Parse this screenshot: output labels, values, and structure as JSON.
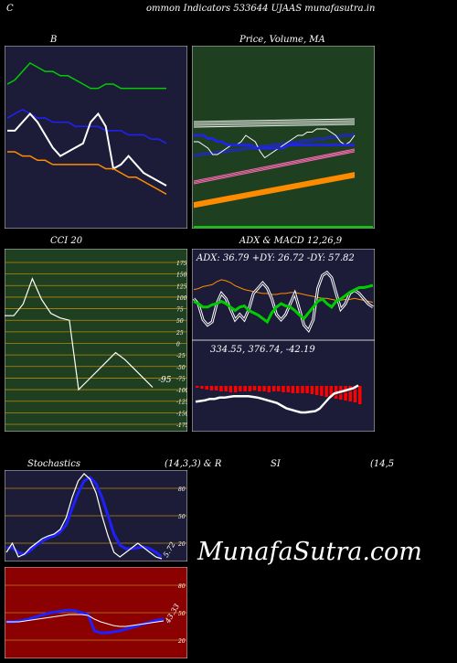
{
  "header": {
    "left": "C",
    "title": "ommon  Indicators 533644  UJAAS munafasutra.in"
  },
  "watermark": "MunafaSutra.com",
  "colors": {
    "navy": "#1c1c38",
    "darkgreen": "#1f4020",
    "darkred": "#8b0000",
    "grid": "#b8860b",
    "white": "#ffffff",
    "blue": "#2020ff",
    "green": "#00cc00",
    "orange": "#ff8c00",
    "red": "#ff0000"
  },
  "chart_data": [
    {
      "id": "bollinger",
      "type": "line",
      "title": "B",
      "series": [
        {
          "name": "",
          "color": "green",
          "values": [
            57,
            58,
            60,
            62,
            61,
            60,
            60,
            59,
            59,
            58,
            57,
            56,
            56,
            57,
            57,
            56,
            56,
            56,
            56,
            56,
            56,
            56
          ]
        },
        {
          "name": "",
          "color": "blue",
          "values": [
            49,
            50,
            51,
            50,
            49,
            49,
            48,
            48,
            48,
            47,
            47,
            47,
            47,
            46,
            46,
            46,
            45,
            45,
            45,
            44,
            44,
            43
          ]
        },
        {
          "name": "",
          "color": "white",
          "values": [
            46,
            46,
            48,
            50,
            48,
            45,
            42,
            40,
            41,
            42,
            43,
            48,
            50,
            47,
            37,
            38,
            40,
            38,
            36,
            35,
            34,
            33
          ]
        },
        {
          "name": "",
          "color": "orange",
          "values": [
            41,
            41,
            40,
            40,
            39,
            39,
            38,
            38,
            38,
            38,
            38,
            38,
            38,
            37,
            37,
            36,
            35,
            35,
            34,
            33,
            32,
            31
          ]
        }
      ]
    },
    {
      "id": "price-ma",
      "type": "line",
      "title": "Price,  Volume,  MA",
      "series": [
        {
          "name": "",
          "color": "white",
          "values": [
            60,
            60,
            59,
            58,
            56,
            56,
            57,
            58,
            59,
            59,
            60,
            62,
            61,
            60,
            57,
            55,
            56,
            57,
            58,
            59,
            60,
            61,
            62,
            62,
            63,
            63,
            64,
            64,
            64,
            63,
            62,
            60,
            59,
            60,
            62
          ]
        },
        {
          "name": "",
          "color": "blue",
          "values": [
            62,
            62,
            62,
            61,
            61,
            60,
            60,
            59,
            59,
            59,
            59,
            59,
            59,
            58,
            58,
            58,
            58,
            58,
            58,
            58,
            59,
            59,
            59,
            59,
            59,
            59,
            59,
            59,
            59,
            59,
            59,
            59,
            59,
            59,
            59
          ]
        }
      ]
    },
    {
      "id": "cci",
      "type": "line",
      "title": "CCI 20",
      "last_label": "-95",
      "ticks": [
        175,
        150,
        125,
        100,
        75,
        50,
        25,
        0,
        -25,
        -50,
        -75,
        -100,
        -125,
        -150,
        -175
      ],
      "ylim": [
        -175,
        175
      ],
      "values": [
        60,
        60,
        85,
        140,
        95,
        65,
        55,
        50,
        -100,
        -80,
        -60,
        -40,
        -20,
        -35,
        -55,
        -75,
        -95
      ]
    },
    {
      "id": "adx",
      "type": "line",
      "title": "ADX  & MACD 12,26,9",
      "text": "ADX: 36.79  +DY: 26.72  -DY: 57.82",
      "adx": [
        62,
        63,
        65,
        66,
        67,
        70,
        72,
        71,
        69,
        66,
        64,
        62,
        61,
        60,
        59,
        58,
        58,
        57,
        57,
        58,
        58,
        59,
        59,
        58,
        57,
        56,
        55,
        54,
        53,
        53,
        52,
        51,
        51,
        52,
        52,
        53,
        52,
        51,
        50,
        49
      ],
      "plus_di": [
        60,
        58,
        55,
        55,
        57,
        58,
        60,
        58,
        55,
        52,
        55,
        56,
        52,
        50,
        48,
        45,
        42,
        50,
        55,
        58,
        56,
        55,
        52,
        48,
        45,
        50,
        55,
        60,
        62,
        58,
        55,
        60,
        62,
        65,
        68,
        70,
        72,
        72,
        73,
        74
      ],
      "minus_di": [
        50,
        45,
        30,
        25,
        28,
        45,
        55,
        50,
        40,
        30,
        35,
        30,
        40,
        55,
        60,
        65,
        60,
        50,
        35,
        30,
        35,
        45,
        55,
        40,
        25,
        20,
        30,
        60,
        72,
        75,
        70,
        55,
        40,
        45,
        55,
        58,
        55,
        50,
        45,
        42
      ]
    },
    {
      "id": "macd",
      "type": "bar",
      "text": "334.55,  376.74,  -42.19",
      "bars": [
        2,
        3,
        4,
        5,
        5,
        6,
        6,
        7,
        7,
        6,
        6,
        6,
        5,
        6,
        6,
        7,
        6,
        6,
        7,
        7,
        8,
        8,
        8,
        8,
        9,
        10,
        11,
        12,
        13,
        14,
        15,
        16,
        17,
        18,
        20
      ],
      "macd": [
        20,
        21,
        22,
        24,
        24,
        26,
        26,
        27,
        28,
        28,
        28,
        28,
        27,
        26,
        24,
        22,
        20,
        18,
        14,
        10,
        8,
        6,
        4,
        4,
        5,
        6,
        10,
        18,
        26,
        32,
        34,
        36,
        38,
        40,
        44
      ]
    },
    {
      "id": "stochastics",
      "type": "line",
      "title": "Stochastics",
      "params": "(14,3,3)  & R",
      "ticks": [
        80,
        50,
        20
      ],
      "ylim": [
        0,
        100
      ],
      "last_label": "5.72",
      "k": [
        10,
        20,
        5,
        8,
        15,
        20,
        25,
        28,
        30,
        35,
        48,
        70,
        88,
        96,
        90,
        75,
        50,
        28,
        10,
        5,
        10,
        15,
        20,
        15,
        10,
        5,
        3
      ],
      "d": [
        15,
        15,
        10,
        8,
        12,
        18,
        22,
        26,
        28,
        32,
        40,
        58,
        75,
        88,
        92,
        85,
        70,
        50,
        30,
        18,
        14,
        14,
        15,
        16,
        14,
        10,
        5
      ]
    },
    {
      "id": "rsi",
      "type": "line",
      "title": "SI",
      "params": "(14,5",
      "ticks": [
        80,
        50,
        20
      ],
      "ylim": [
        0,
        100
      ],
      "last_label": "43.33",
      "rsi": [
        40,
        40,
        41,
        42,
        44,
        46,
        48,
        50,
        51,
        52,
        53,
        52,
        50,
        48,
        30,
        28,
        28,
        29,
        30,
        32,
        34,
        36,
        38,
        40,
        42,
        43
      ],
      "ma": [
        40,
        40,
        40,
        41,
        42,
        43,
        44,
        45,
        46,
        47,
        48,
        48,
        48,
        47,
        43,
        40,
        38,
        36,
        35,
        35,
        36,
        37,
        38,
        39,
        40,
        41
      ]
    }
  ]
}
